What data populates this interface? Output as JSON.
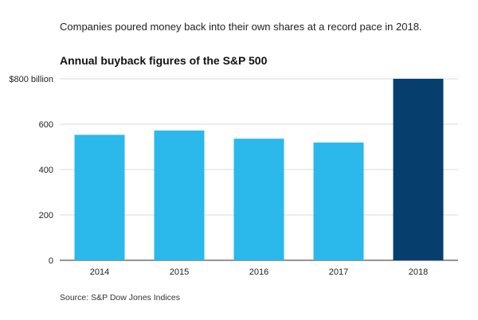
{
  "header": {
    "subtitle": "Companies poured money back into their own shares at a record pace in 2018."
  },
  "footer": {
    "source": "Source: S&P Dow Jones Indices"
  },
  "chart_data": {
    "type": "bar",
    "title": "Annual buyback figures of the S&P 500",
    "categories": [
      "2014",
      "2015",
      "2016",
      "2017",
      "2018"
    ],
    "values": [
      553,
      572,
      536,
      519,
      800
    ],
    "ylim": [
      0,
      800
    ],
    "yticks": [
      0,
      200,
      400,
      600,
      800
    ],
    "ytick_labels": [
      "0",
      "200",
      "400",
      "600",
      "$800 billion"
    ],
    "grid": true,
    "colors": {
      "default": "#2bb8ea",
      "highlight": "#063f6e",
      "grid": "#d9d9d9",
      "axis": "#555555"
    },
    "highlight_category": "2018"
  }
}
